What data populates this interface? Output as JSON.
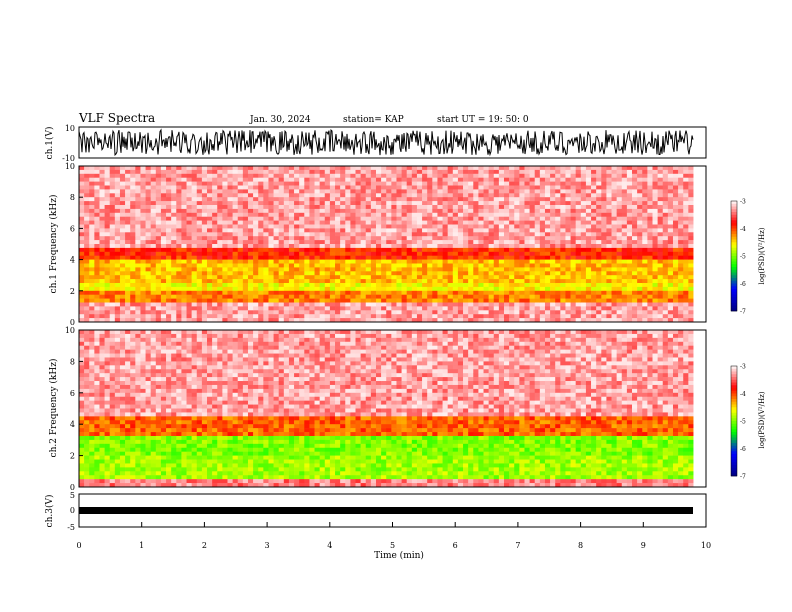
{
  "header": {
    "title": "VLF Spectra",
    "date": "Jan. 30, 2024",
    "station": "station= KAP",
    "start": "start UT =   19: 50: 0"
  },
  "colors": {
    "spectrogram_scale": [
      "#000080",
      "#0000ff",
      "#00ff00",
      "#ffff00",
      "#ff0000",
      "#ffffff"
    ],
    "waveform": "#000000"
  },
  "chart_data": [
    {
      "type": "line",
      "panel": "ch1-waveform",
      "ylabel": "ch.1(V)",
      "ylim": [
        -10,
        10
      ],
      "yticks": [
        "10",
        "-10"
      ],
      "xlim": [
        0,
        10
      ],
      "description_values": {
        "amplitude_range": [
          -10,
          10
        ]
      }
    },
    {
      "type": "heatmap",
      "panel": "ch1-spectrogram",
      "ylabel": "ch.1\nFrequency (kHz)",
      "ylim": [
        0,
        10
      ],
      "yticks": [
        "0",
        "2",
        "4",
        "6",
        "8",
        "10"
      ],
      "xlim": [
        0,
        10
      ],
      "colorbar": {
        "label": "log(PSD)(V²/Hz)",
        "range": [
          -7,
          -3
        ],
        "ticks": [
          "-3",
          "-4",
          "-5",
          "-6",
          "-7"
        ]
      },
      "bands": [
        {
          "from": 0,
          "to": 1.2,
          "level": -3.3
        },
        {
          "from": 1.2,
          "to": 2.0,
          "level": -4.2
        },
        {
          "from": 2.0,
          "to": 2.6,
          "level": -4.6
        },
        {
          "from": 2.6,
          "to": 3.9,
          "level": -4.4
        },
        {
          "from": 3.9,
          "to": 4.8,
          "level": -3.9
        },
        {
          "from": 4.8,
          "to": 10,
          "level": -3.3
        }
      ]
    },
    {
      "type": "heatmap",
      "panel": "ch2-spectrogram",
      "ylabel": "ch.2\nFrequency (kHz)",
      "ylim": [
        0,
        10
      ],
      "yticks": [
        "0",
        "2",
        "4",
        "6",
        "8",
        "10"
      ],
      "xlim": [
        0,
        10
      ],
      "colorbar": {
        "label": "log(PSD)(V²/Hz)",
        "range": [
          -7,
          -3
        ],
        "ticks": [
          "-3",
          "-4",
          "-5",
          "-6",
          "-7"
        ]
      },
      "bands": [
        {
          "from": 0,
          "to": 0.5,
          "level": -3.4
        },
        {
          "from": 0.5,
          "to": 2.0,
          "level": -4.9
        },
        {
          "from": 2.0,
          "to": 3.2,
          "level": -5.0
        },
        {
          "from": 3.2,
          "to": 4.5,
          "level": -4.1
        },
        {
          "from": 4.5,
          "to": 10,
          "level": -3.3
        }
      ]
    },
    {
      "type": "line",
      "panel": "ch3-waveform",
      "ylabel": "ch.3(V)",
      "ylim": [
        -5,
        5
      ],
      "yticks": [
        "5",
        "0",
        "-5"
      ],
      "xlim": [
        0,
        10
      ],
      "xlabel": "Time (min)",
      "xticks": [
        "0",
        "1",
        "2",
        "3",
        "4",
        "5",
        "6",
        "7",
        "8",
        "9",
        "10"
      ]
    }
  ]
}
